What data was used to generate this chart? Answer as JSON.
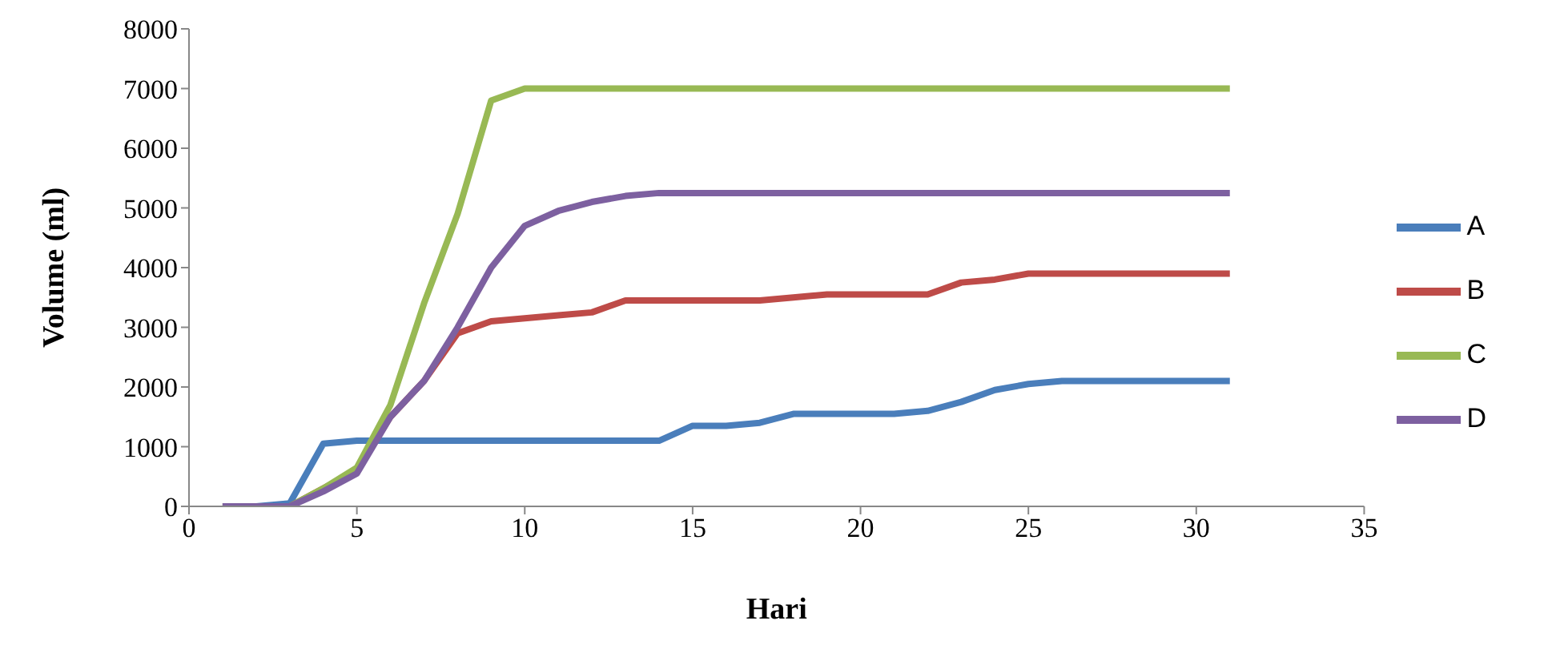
{
  "chart_data": {
    "type": "line",
    "xlabel": "Hari",
    "ylabel": "Volume (ml)",
    "x": [
      1,
      2,
      3,
      4,
      5,
      6,
      7,
      8,
      9,
      10,
      11,
      12,
      13,
      14,
      15,
      16,
      17,
      18,
      19,
      20,
      21,
      22,
      23,
      24,
      25,
      26,
      27,
      28,
      29,
      30,
      31
    ],
    "series": [
      {
        "name": "A",
        "color": "#4a7ebb",
        "values": [
          0,
          0,
          50,
          1050,
          1100,
          1100,
          1100,
          1100,
          1100,
          1100,
          1100,
          1100,
          1100,
          1100,
          1350,
          1350,
          1400,
          1550,
          1550,
          1550,
          1550,
          1600,
          1750,
          1950,
          2050,
          2100,
          2100,
          2100,
          2100,
          2100,
          2100
        ]
      },
      {
        "name": "B",
        "color": "#be4b48",
        "values": [
          0,
          0,
          0,
          300,
          600,
          1500,
          2100,
          2900,
          3100,
          3150,
          3200,
          3250,
          3450,
          3450,
          3450,
          3450,
          3450,
          3500,
          3550,
          3550,
          3550,
          3550,
          3750,
          3800,
          3900,
          3900,
          3900,
          3900,
          3900,
          3900,
          3900
        ]
      },
      {
        "name": "C",
        "color": "#98b954",
        "values": [
          0,
          0,
          0,
          300,
          650,
          1700,
          3400,
          4900,
          6800,
          7000,
          7000,
          7000,
          7000,
          7000,
          7000,
          7000,
          7000,
          7000,
          7000,
          7000,
          7000,
          7000,
          7000,
          7000,
          7000,
          7000,
          7000,
          7000,
          7000,
          7000,
          7000
        ]
      },
      {
        "name": "D",
        "color": "#7d60a0",
        "values": [
          0,
          0,
          0,
          250,
          550,
          1500,
          2100,
          3000,
          4000,
          4700,
          4950,
          5100,
          5200,
          5250,
          5250,
          5250,
          5250,
          5250,
          5250,
          5250,
          5250,
          5250,
          5250,
          5250,
          5250,
          5250,
          5250,
          5250,
          5250,
          5250,
          5250
        ]
      }
    ],
    "xlim": [
      0,
      35
    ],
    "xticks": [
      0,
      5,
      10,
      15,
      20,
      25,
      30,
      35
    ],
    "ylim": [
      0,
      8000
    ],
    "yticks": [
      0,
      1000,
      2000,
      3000,
      4000,
      5000,
      6000,
      7000,
      8000
    ],
    "grid": false,
    "legend": "right",
    "marker": "none",
    "line_style": "solid"
  }
}
